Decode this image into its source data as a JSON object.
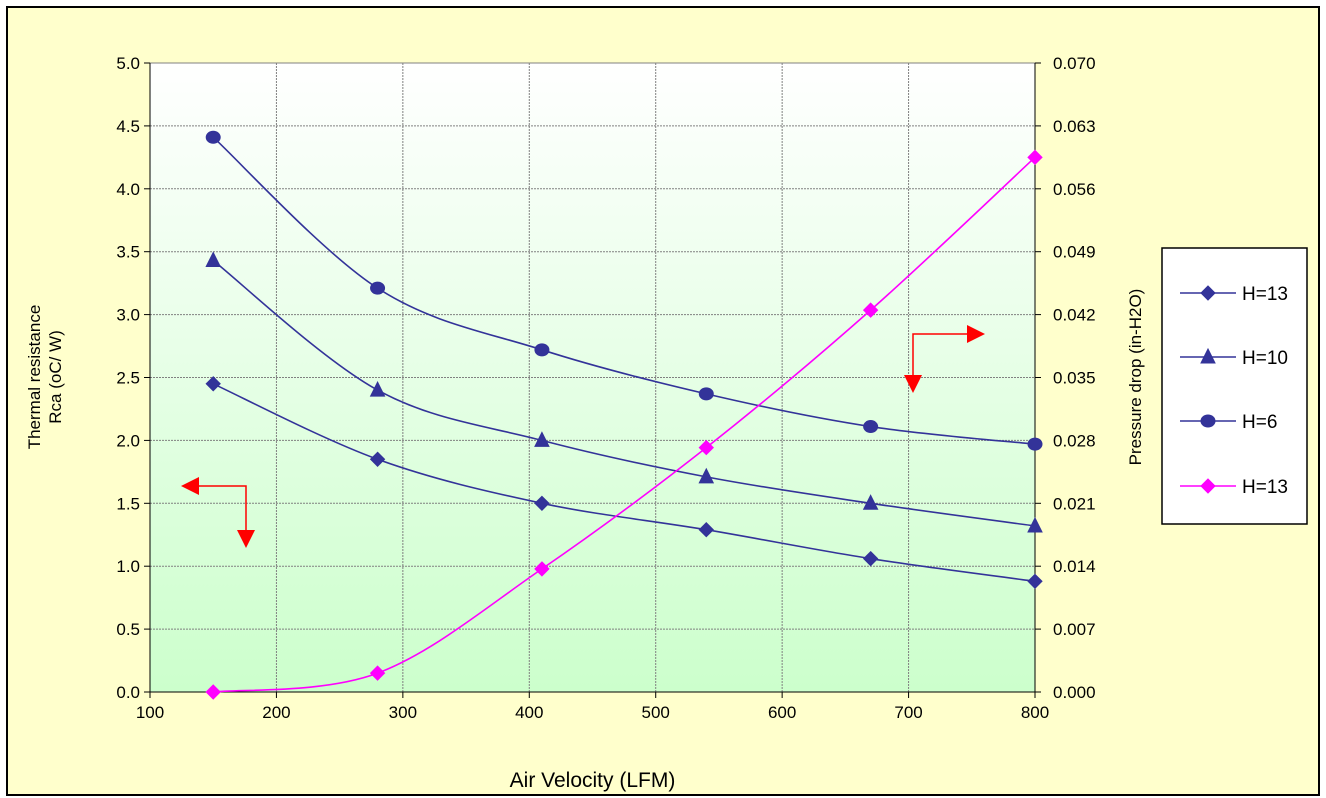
{
  "chart_data": {
    "type": "line",
    "xlabel": "Air Velocity (LFM)",
    "ylabel_left": [
      "Thermal resistance",
      "Rca (oC/ W)"
    ],
    "ylabel_right": "Pressure drop (in-H2O)",
    "xlim": [
      100,
      800
    ],
    "ylim_left": [
      0,
      5
    ],
    "ylim_right": [
      0,
      0.07
    ],
    "x_ticks": [
      "100",
      "200",
      "300",
      "400",
      "500",
      "600",
      "700",
      "800"
    ],
    "y_left_ticks": [
      "0.0",
      "0.5",
      "1.0",
      "1.5",
      "2.0",
      "2.5",
      "3.0",
      "3.5",
      "4.0",
      "4.5",
      "5.0"
    ],
    "y_right_ticks": [
      "0.000",
      "0.007",
      "0.014",
      "0.021",
      "0.028",
      "0.035",
      "0.042",
      "0.049",
      "0.056",
      "0.063",
      "0.070"
    ],
    "grid": true,
    "legend_position": "right",
    "series": [
      {
        "name": "H=13",
        "axis": "left",
        "marker": "diamond",
        "color": "#333399",
        "x": [
          150,
          280,
          410,
          540,
          670,
          800
        ],
        "y": [
          2.45,
          1.85,
          1.5,
          1.29,
          1.06,
          0.88
        ]
      },
      {
        "name": "H=10",
        "axis": "left",
        "marker": "triangle",
        "color": "#333399",
        "x": [
          150,
          280,
          410,
          540,
          670,
          800
        ],
        "y": [
          3.43,
          2.4,
          2.0,
          1.71,
          1.5,
          1.32
        ]
      },
      {
        "name": "H=6",
        "axis": "left",
        "marker": "circle",
        "color": "#333399",
        "x": [
          150,
          280,
          410,
          540,
          670,
          800
        ],
        "y": [
          4.41,
          3.21,
          2.72,
          2.37,
          2.11,
          1.97
        ]
      },
      {
        "name": "H=13",
        "axis": "right",
        "marker": "diamond",
        "color": "#ff00ff",
        "x": [
          150,
          280,
          410,
          540,
          670,
          800
        ],
        "y": [
          0.0,
          0.0021,
          0.0137,
          0.0272,
          0.0425,
          0.0595
        ]
      }
    ],
    "colors": {
      "background": "#ffffcc",
      "plot_top": "#ffffff",
      "plot_bottom": "#ccffcc",
      "arrow": "#ff0000"
    }
  }
}
